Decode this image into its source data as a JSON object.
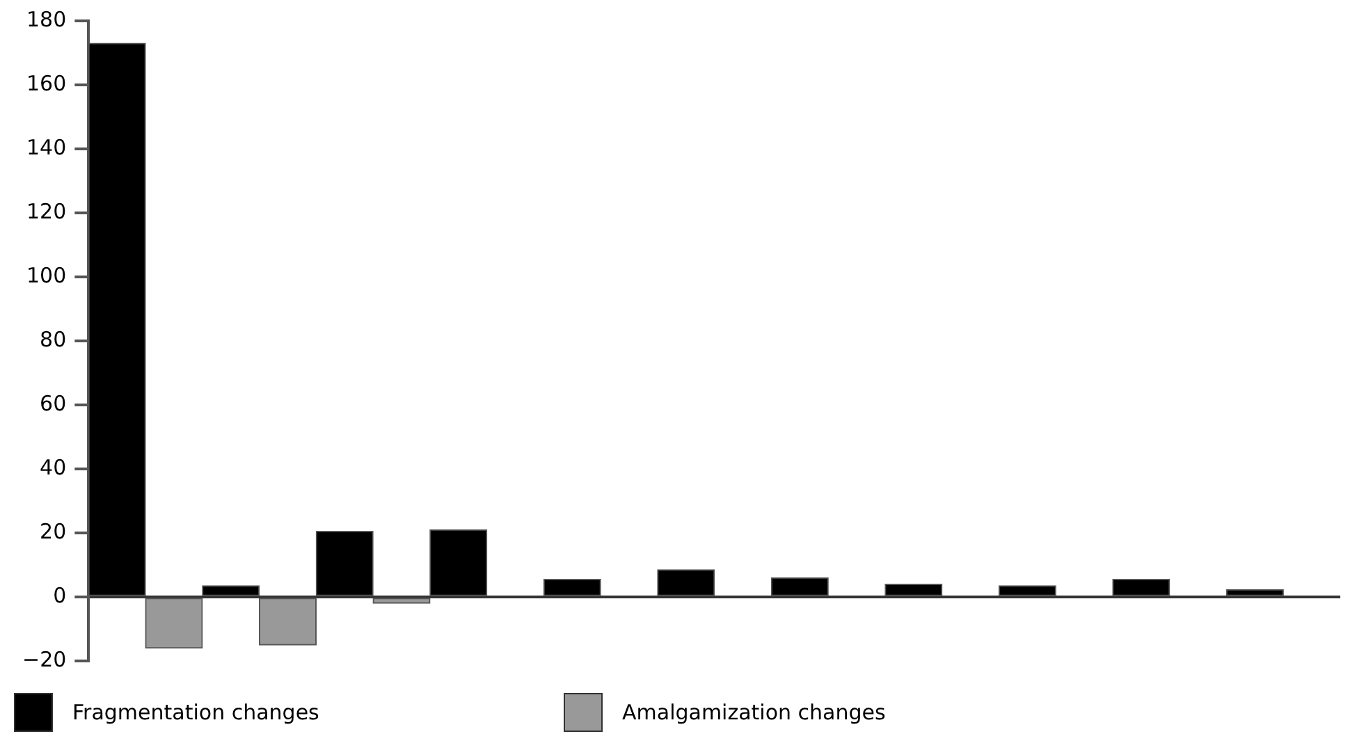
{
  "chart_data": {
    "type": "bar",
    "categories": [
      null,
      null,
      null,
      null,
      null,
      null,
      null,
      null,
      null,
      null,
      null
    ],
    "series": [
      {
        "name": "Fragmentation changes",
        "color": "#000000",
        "values": [
          173,
          3.5,
          20.5,
          21,
          5.5,
          8.5,
          6,
          4,
          3.5,
          5.5,
          2.3
        ]
      },
      {
        "name": "Amalgamization changes",
        "color": "#999999",
        "values": [
          -16,
          -15,
          -2,
          null,
          null,
          null,
          null,
          null,
          null,
          null,
          null
        ]
      }
    ],
    "ylim": [
      -20,
      180
    ],
    "yticks": [
      -20,
      0,
      20,
      40,
      60,
      80,
      100,
      120,
      140,
      160,
      180
    ],
    "legend": "bottom"
  }
}
